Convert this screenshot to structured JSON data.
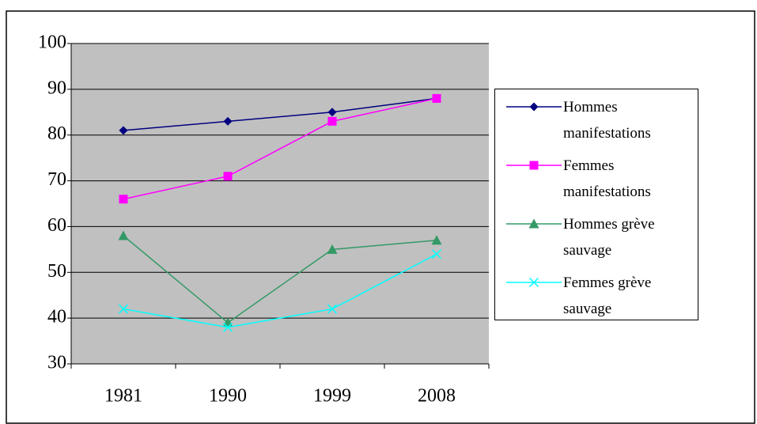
{
  "chart_data": {
    "type": "line",
    "categories": [
      "1981",
      "1990",
      "1999",
      "2008"
    ],
    "series": [
      {
        "name": "Hommes manifestations",
        "color": "#000080",
        "marker": "diamond",
        "values": [
          81,
          83,
          85,
          88
        ]
      },
      {
        "name": "Femmes manifestations",
        "color": "#ff00ff",
        "marker": "square",
        "values": [
          66,
          71,
          83,
          88
        ]
      },
      {
        "name": "Hommes grève sauvage",
        "color": "#339966",
        "marker": "triangle",
        "values": [
          58,
          39,
          55,
          57
        ]
      },
      {
        "name": "Femmes grève sauvage",
        "color": "#00ffff",
        "marker": "x",
        "values": [
          42,
          38,
          42,
          54
        ]
      }
    ],
    "ylim": [
      30,
      100
    ],
    "yticks": [
      30,
      40,
      50,
      60,
      70,
      80,
      90,
      100
    ],
    "grid": true,
    "legend": "right"
  }
}
